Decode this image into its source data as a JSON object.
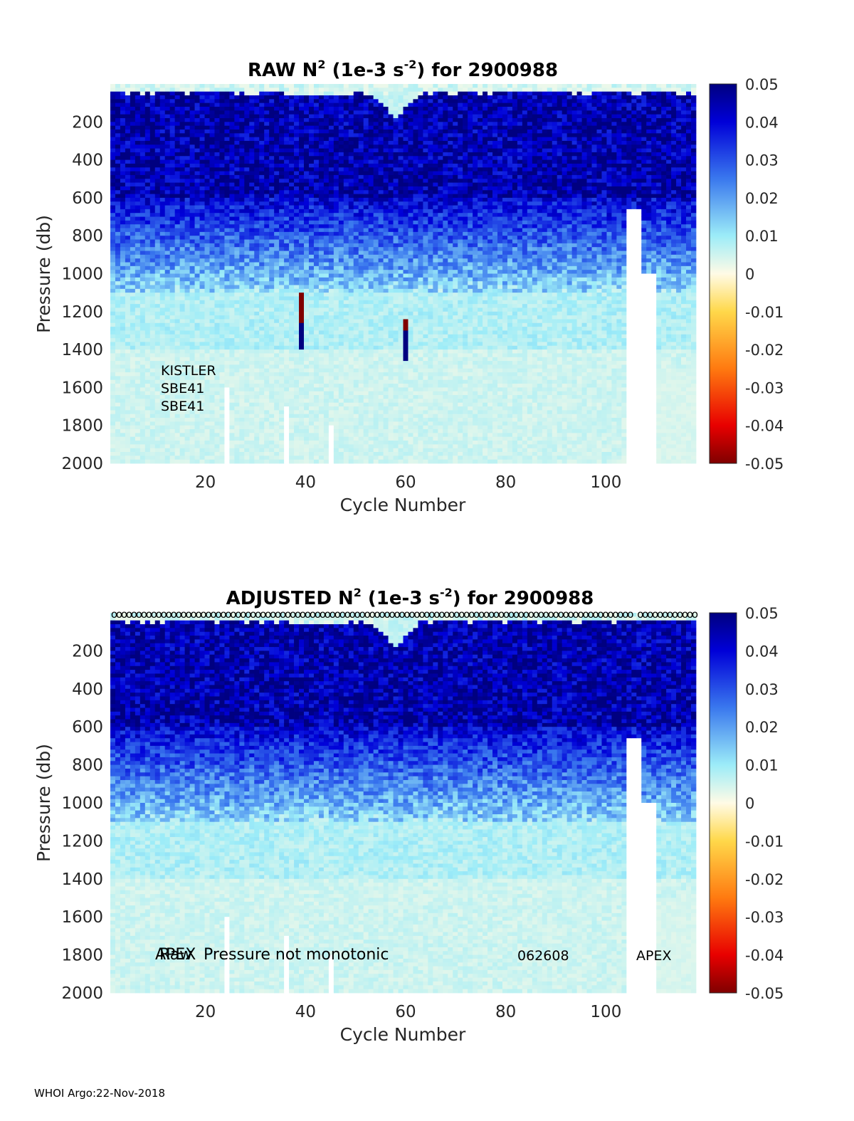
{
  "chart_data": [
    {
      "type": "heatmap",
      "title": "RAW N² (1e-3 s⁻²) for 2900988",
      "title_parts": {
        "main": "RAW N",
        "sup1": "2",
        "mid": " (1e-3 s",
        "sup2": "-2",
        "end": ") for 2900988"
      },
      "xlabel": "Cycle Number",
      "ylabel": "Pressure (db)",
      "xlim": [
        1,
        118
      ],
      "ylim": [
        2000,
        0
      ],
      "xticks": [
        20,
        40,
        60,
        80,
        100
      ],
      "yticks": [
        200,
        400,
        600,
        800,
        1000,
        1200,
        1400,
        1600,
        1800,
        2000
      ],
      "clim": [
        -0.05,
        0.05
      ],
      "colorbar_ticks": [
        "0.05",
        "0.04",
        "0.03",
        "0.02",
        "0.01",
        "0",
        "-0.01",
        "-0.02",
        "-0.03",
        "-0.04",
        "-0.05"
      ],
      "annotations": [
        "KISTLER",
        "SBE41",
        "SBE41"
      ],
      "missing_columns": [
        {
          "cycle": 24,
          "from_db": 1600
        },
        {
          "cycle": 36,
          "from_db": 1700
        },
        {
          "cycle": 45,
          "from_db": 1800
        },
        {
          "cycle": 107,
          "from_db": 660
        }
      ],
      "negative_spikes": [
        {
          "cycle": 39,
          "from_db": 1100,
          "to_db": 1250
        },
        {
          "cycle": 60,
          "from_db": 1250,
          "to_db": 1300
        }
      ]
    },
    {
      "type": "heatmap",
      "title": "ADJUSTED N² (1e-3 s⁻²) for 2900988",
      "title_parts": {
        "main": "ADJUSTED N",
        "sup1": "2",
        "mid": " (1e-3 s",
        "sup2": "-2",
        "end": ") for 2900988"
      },
      "xlabel": "Cycle Number",
      "ylabel": "Pressure (db)",
      "xlim": [
        1,
        118
      ],
      "ylim": [
        2000,
        0
      ],
      "xticks": [
        20,
        40,
        60,
        80,
        100
      ],
      "yticks": [
        200,
        400,
        600,
        800,
        1000,
        1200,
        1400,
        1600,
        1800,
        2000
      ],
      "clim": [
        -0.05,
        0.05
      ],
      "colorbar_ticks": [
        "0.05",
        "0.04",
        "0.03",
        "0.02",
        "0.01",
        "0",
        "-0.01",
        "-0.02",
        "-0.03",
        "-0.04",
        "-0.05"
      ],
      "annotations": [
        "APEX",
        "Raw",
        "Pressure not monotonic",
        "062608",
        "APEX"
      ],
      "qc_markers": "o",
      "missing_columns": [
        {
          "cycle": 24,
          "from_db": 1600
        },
        {
          "cycle": 36,
          "from_db": 1700
        },
        {
          "cycle": 45,
          "from_db": 1800
        },
        {
          "cycle": 107,
          "from_db": 660
        }
      ]
    }
  ],
  "colors": {
    "deep_blue": "#000080",
    "mid_blue": "#3050e0",
    "light_cyan": "#c8fff6",
    "zero": "#fffae0",
    "neg_dark": "#800000"
  },
  "footer": "WHOI Argo:22-Nov-2018"
}
